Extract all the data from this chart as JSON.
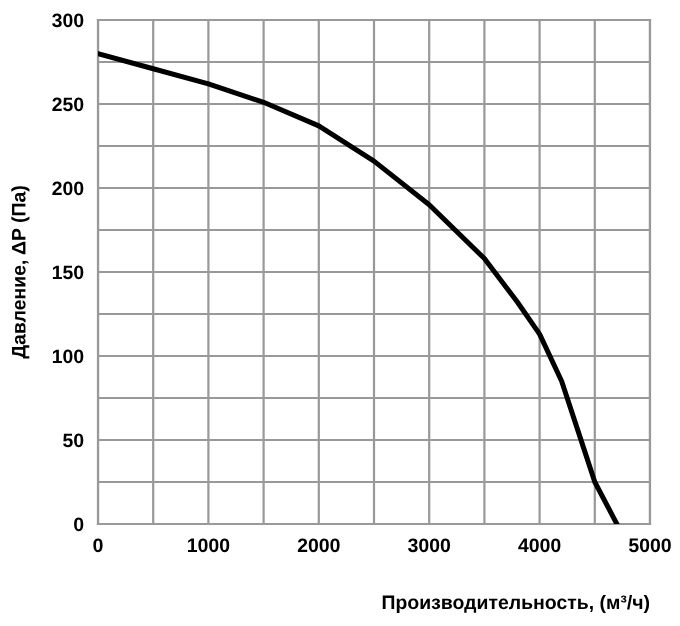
{
  "chart_data": {
    "type": "line",
    "xlabel": "Производительность, (м³/ч)",
    "ylabel": "Давление, ΔP (Па)",
    "x": [
      0,
      500,
      1000,
      1500,
      2000,
      2500,
      3000,
      3500,
      3800,
      4000,
      4200,
      4400,
      4500,
      4700
    ],
    "series": [
      {
        "color": "#000000",
        "values": [
          280,
          271,
          262,
          251,
          237,
          216,
          190,
          158,
          132,
          113,
          85,
          45,
          25,
          0
        ]
      }
    ],
    "xlim": [
      0,
      5000
    ],
    "ylim": [
      0,
      300
    ],
    "xticks": [
      0,
      {
        "value": 500,
        "label": null
      },
      1000,
      {
        "value": 1500,
        "label": null
      },
      2000,
      {
        "value": 2500,
        "label": null
      },
      3000,
      {
        "value": 3500,
        "label": null
      },
      4000,
      {
        "value": 4500,
        "label": null
      },
      5000
    ],
    "yticks": [
      0,
      {
        "value": 25,
        "label": null
      },
      50,
      {
        "value": 75,
        "label": null
      },
      100,
      {
        "value": 125,
        "label": null
      },
      150,
      {
        "value": 175,
        "label": null
      },
      200,
      {
        "value": 225,
        "label": null
      },
      250,
      {
        "value": 275,
        "label": null
      },
      300
    ],
    "grid": true,
    "legend": false,
    "marker": "none",
    "line_style": "solid"
  }
}
